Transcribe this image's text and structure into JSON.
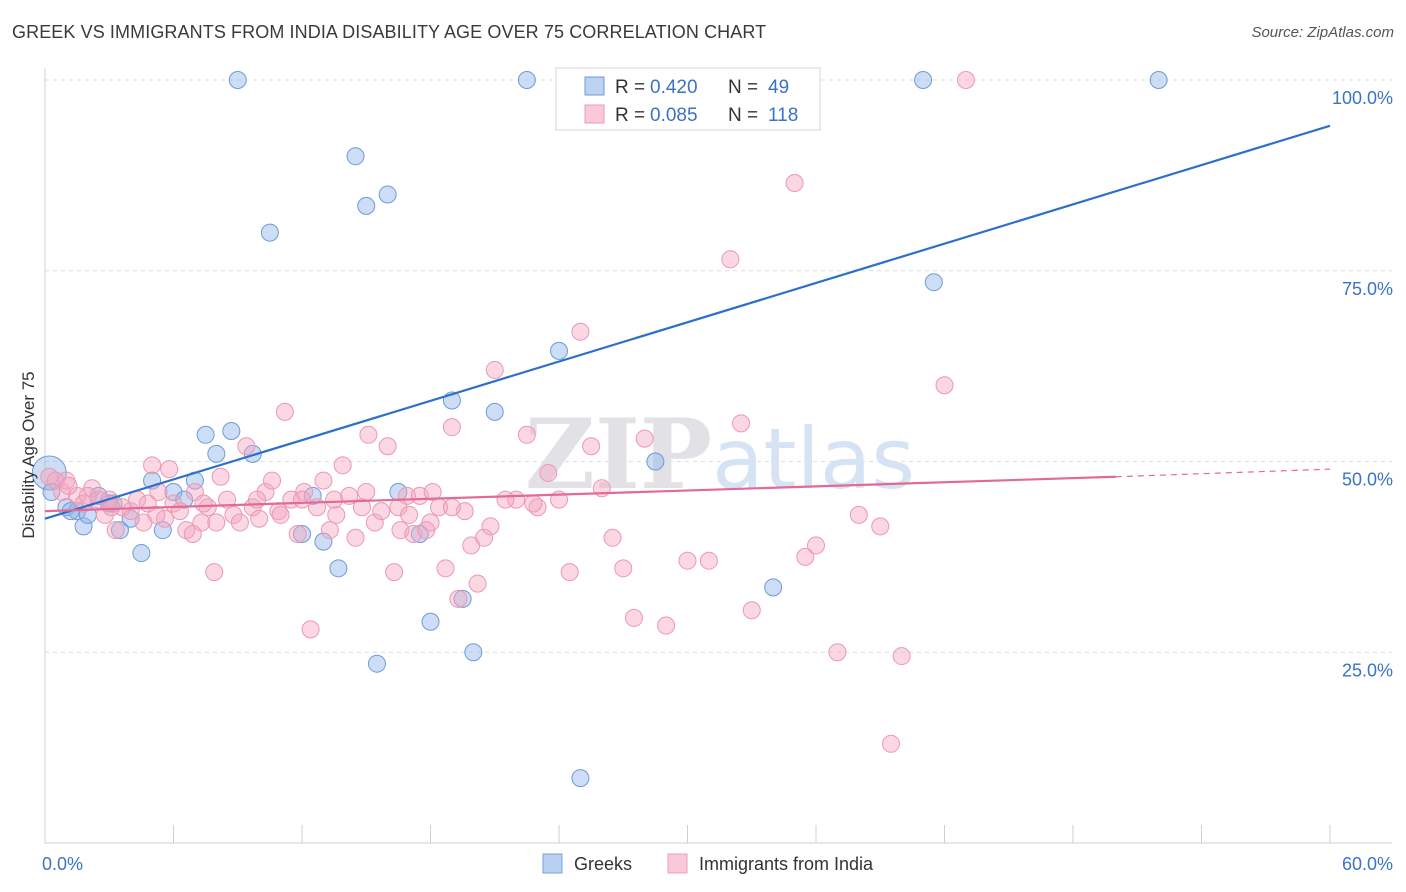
{
  "title": "GREEK VS IMMIGRANTS FROM INDIA DISABILITY AGE OVER 75 CORRELATION CHART",
  "source": "Source: ZipAtlas.com",
  "chart_data": {
    "type": "scatter",
    "title": "GREEK VS IMMIGRANTS FROM INDIA DISABILITY AGE OVER 75 CORRELATION CHART",
    "xlabel": "",
    "ylabel": "Disability Age Over 75",
    "xlim": [
      0,
      60
    ],
    "ylim": [
      0,
      100
    ],
    "x_tick_labels": [
      "0.0%",
      "60.0%"
    ],
    "y_tick_labels": [
      "25.0%",
      "50.0%",
      "75.0%",
      "100.0%"
    ],
    "y_ticks": [
      25,
      50,
      75,
      100
    ],
    "grid": true,
    "legend_placement": "top-center",
    "watermark": "ZIPatlas",
    "legend": [
      {
        "r_label": "R = ",
        "r_value": "0.420",
        "n_label": "N = ",
        "n_value": "49"
      },
      {
        "r_label": "R = ",
        "r_value": "0.085",
        "n_label": "N = ",
        "n_value": "118"
      }
    ],
    "series": [
      {
        "name": "Greeks",
        "color": "#8db4e8",
        "line_color": "#2f6fcc",
        "trend": {
          "x": [
            0,
            60
          ],
          "y": [
            42.5,
            94
          ]
        },
        "points": [
          [
            0.2,
            48.5
          ],
          [
            0.3,
            46
          ],
          [
            1.0,
            44
          ],
          [
            1.5,
            43.5
          ],
          [
            1.8,
            41.5
          ],
          [
            2.5,
            45.5
          ],
          [
            3.0,
            44.5
          ],
          [
            3.5,
            41
          ],
          [
            4.0,
            42.5
          ],
          [
            4.5,
            38
          ],
          [
            5.0,
            47.5
          ],
          [
            6.0,
            46
          ],
          [
            7.0,
            47.5
          ],
          [
            7.5,
            53.5
          ],
          [
            8.0,
            51
          ],
          [
            8.7,
            54
          ],
          [
            9.0,
            100
          ],
          [
            9.7,
            51
          ],
          [
            10.5,
            80
          ],
          [
            12.0,
            40.5
          ],
          [
            12.5,
            45.5
          ],
          [
            13.0,
            39.5
          ],
          [
            13.7,
            36
          ],
          [
            14.5,
            90
          ],
          [
            15.0,
            83.5
          ],
          [
            15.5,
            23.5
          ],
          [
            16.0,
            85
          ],
          [
            16.5,
            46
          ],
          [
            17.5,
            40.5
          ],
          [
            18.0,
            29
          ],
          [
            19.0,
            58
          ],
          [
            19.5,
            32
          ],
          [
            20.0,
            25
          ],
          [
            21.0,
            56.5
          ],
          [
            22.5,
            100
          ],
          [
            24.0,
            64.5
          ],
          [
            25.0,
            8.5
          ],
          [
            26.0,
            100
          ],
          [
            27.2,
            100
          ],
          [
            28.5,
            50
          ],
          [
            34.0,
            33.5
          ],
          [
            41.0,
            100
          ],
          [
            41.5,
            73.5
          ],
          [
            52.0,
            100
          ],
          [
            1.2,
            43.5
          ],
          [
            2.0,
            43
          ],
          [
            3.2,
            44.5
          ],
          [
            6.5,
            45
          ],
          [
            5.5,
            41
          ]
        ]
      },
      {
        "name": "Immigrants from India",
        "color": "#f4a7c0",
        "line_color": "#e26a95",
        "trend": {
          "x": [
            0,
            50
          ],
          "y": [
            43.5,
            48
          ]
        },
        "trend_dashed": {
          "x": [
            50,
            60
          ],
          "y": [
            48,
            49
          ]
        },
        "points": [
          [
            0.2,
            48
          ],
          [
            0.5,
            47.5
          ],
          [
            0.8,
            46
          ],
          [
            1.0,
            47.5
          ],
          [
            1.5,
            45.5
          ],
          [
            1.8,
            44.5
          ],
          [
            2.2,
            46.5
          ],
          [
            2.5,
            45
          ],
          [
            2.8,
            43
          ],
          [
            3.0,
            45
          ],
          [
            3.3,
            41
          ],
          [
            3.6,
            44
          ],
          [
            4.0,
            43.5
          ],
          [
            4.3,
            45
          ],
          [
            4.6,
            42
          ],
          [
            5.0,
            49.5
          ],
          [
            5.3,
            46
          ],
          [
            5.6,
            42.5
          ],
          [
            5.8,
            49
          ],
          [
            6.0,
            44.5
          ],
          [
            6.3,
            43.5
          ],
          [
            6.6,
            41
          ],
          [
            7.0,
            46
          ],
          [
            7.3,
            42
          ],
          [
            7.6,
            44
          ],
          [
            7.9,
            35.5
          ],
          [
            8.2,
            48
          ],
          [
            8.5,
            45
          ],
          [
            8.8,
            43
          ],
          [
            9.1,
            42
          ],
          [
            9.4,
            52
          ],
          [
            9.7,
            44
          ],
          [
            10.0,
            42.5
          ],
          [
            10.3,
            46
          ],
          [
            10.6,
            47.5
          ],
          [
            10.9,
            43.5
          ],
          [
            11.2,
            56.5
          ],
          [
            11.5,
            45
          ],
          [
            11.8,
            40.5
          ],
          [
            12.1,
            46
          ],
          [
            12.4,
            28
          ],
          [
            12.7,
            44
          ],
          [
            13.0,
            47.5
          ],
          [
            13.3,
            41
          ],
          [
            13.6,
            43
          ],
          [
            13.9,
            49.5
          ],
          [
            14.2,
            45.5
          ],
          [
            14.5,
            40
          ],
          [
            14.8,
            44
          ],
          [
            15.1,
            53.5
          ],
          [
            15.4,
            42
          ],
          [
            15.7,
            43.5
          ],
          [
            16.0,
            52
          ],
          [
            16.3,
            35.5
          ],
          [
            16.6,
            41
          ],
          [
            16.9,
            45.5
          ],
          [
            17.2,
            40.5
          ],
          [
            17.5,
            45.5
          ],
          [
            17.8,
            41
          ],
          [
            18.1,
            46
          ],
          [
            18.4,
            44
          ],
          [
            18.7,
            36
          ],
          [
            19.0,
            54.5
          ],
          [
            19.3,
            32
          ],
          [
            19.6,
            43.5
          ],
          [
            19.9,
            39
          ],
          [
            20.2,
            34
          ],
          [
            20.5,
            40
          ],
          [
            20.8,
            41.5
          ],
          [
            21.0,
            62
          ],
          [
            22.0,
            45
          ],
          [
            22.5,
            53.5
          ],
          [
            23.0,
            44
          ],
          [
            23.5,
            48.5
          ],
          [
            24.0,
            45
          ],
          [
            24.5,
            35.5
          ],
          [
            25.0,
            67
          ],
          [
            25.5,
            52
          ],
          [
            26.0,
            46.5
          ],
          [
            26.5,
            40
          ],
          [
            27.0,
            36
          ],
          [
            27.5,
            29.5
          ],
          [
            28.0,
            53
          ],
          [
            29.0,
            28.5
          ],
          [
            30.0,
            37
          ],
          [
            31.0,
            37
          ],
          [
            32.0,
            76.5
          ],
          [
            32.5,
            55
          ],
          [
            33.0,
            30.5
          ],
          [
            35.0,
            86.5
          ],
          [
            35.5,
            37.5
          ],
          [
            36.0,
            39
          ],
          [
            37.0,
            25
          ],
          [
            38.0,
            43
          ],
          [
            39.0,
            41.5
          ],
          [
            39.5,
            13
          ],
          [
            40.0,
            24.5
          ],
          [
            42.0,
            60
          ],
          [
            43.0,
            100
          ],
          [
            3.1,
            44
          ],
          [
            4.8,
            44.5
          ],
          [
            6.9,
            40.5
          ],
          [
            8.0,
            42
          ],
          [
            9.9,
            45
          ],
          [
            11.0,
            43
          ],
          [
            12.0,
            45
          ],
          [
            15.0,
            46
          ],
          [
            16.5,
            44
          ],
          [
            18.0,
            42
          ],
          [
            19.0,
            44
          ],
          [
            21.5,
            45
          ],
          [
            22.8,
            44.5
          ],
          [
            1.1,
            46.8
          ],
          [
            2.0,
            45.5
          ],
          [
            5.2,
            43
          ],
          [
            7.4,
            44.5
          ],
          [
            13.5,
            45
          ],
          [
            17.0,
            43
          ]
        ]
      }
    ]
  },
  "bottom_legend": [
    {
      "label": "Greeks",
      "color": "#b8d0f2",
      "stroke": "#7aa3dd"
    },
    {
      "label": "Immigrants from India",
      "color": "#f9c9d8",
      "stroke": "#eea0b9"
    }
  ]
}
